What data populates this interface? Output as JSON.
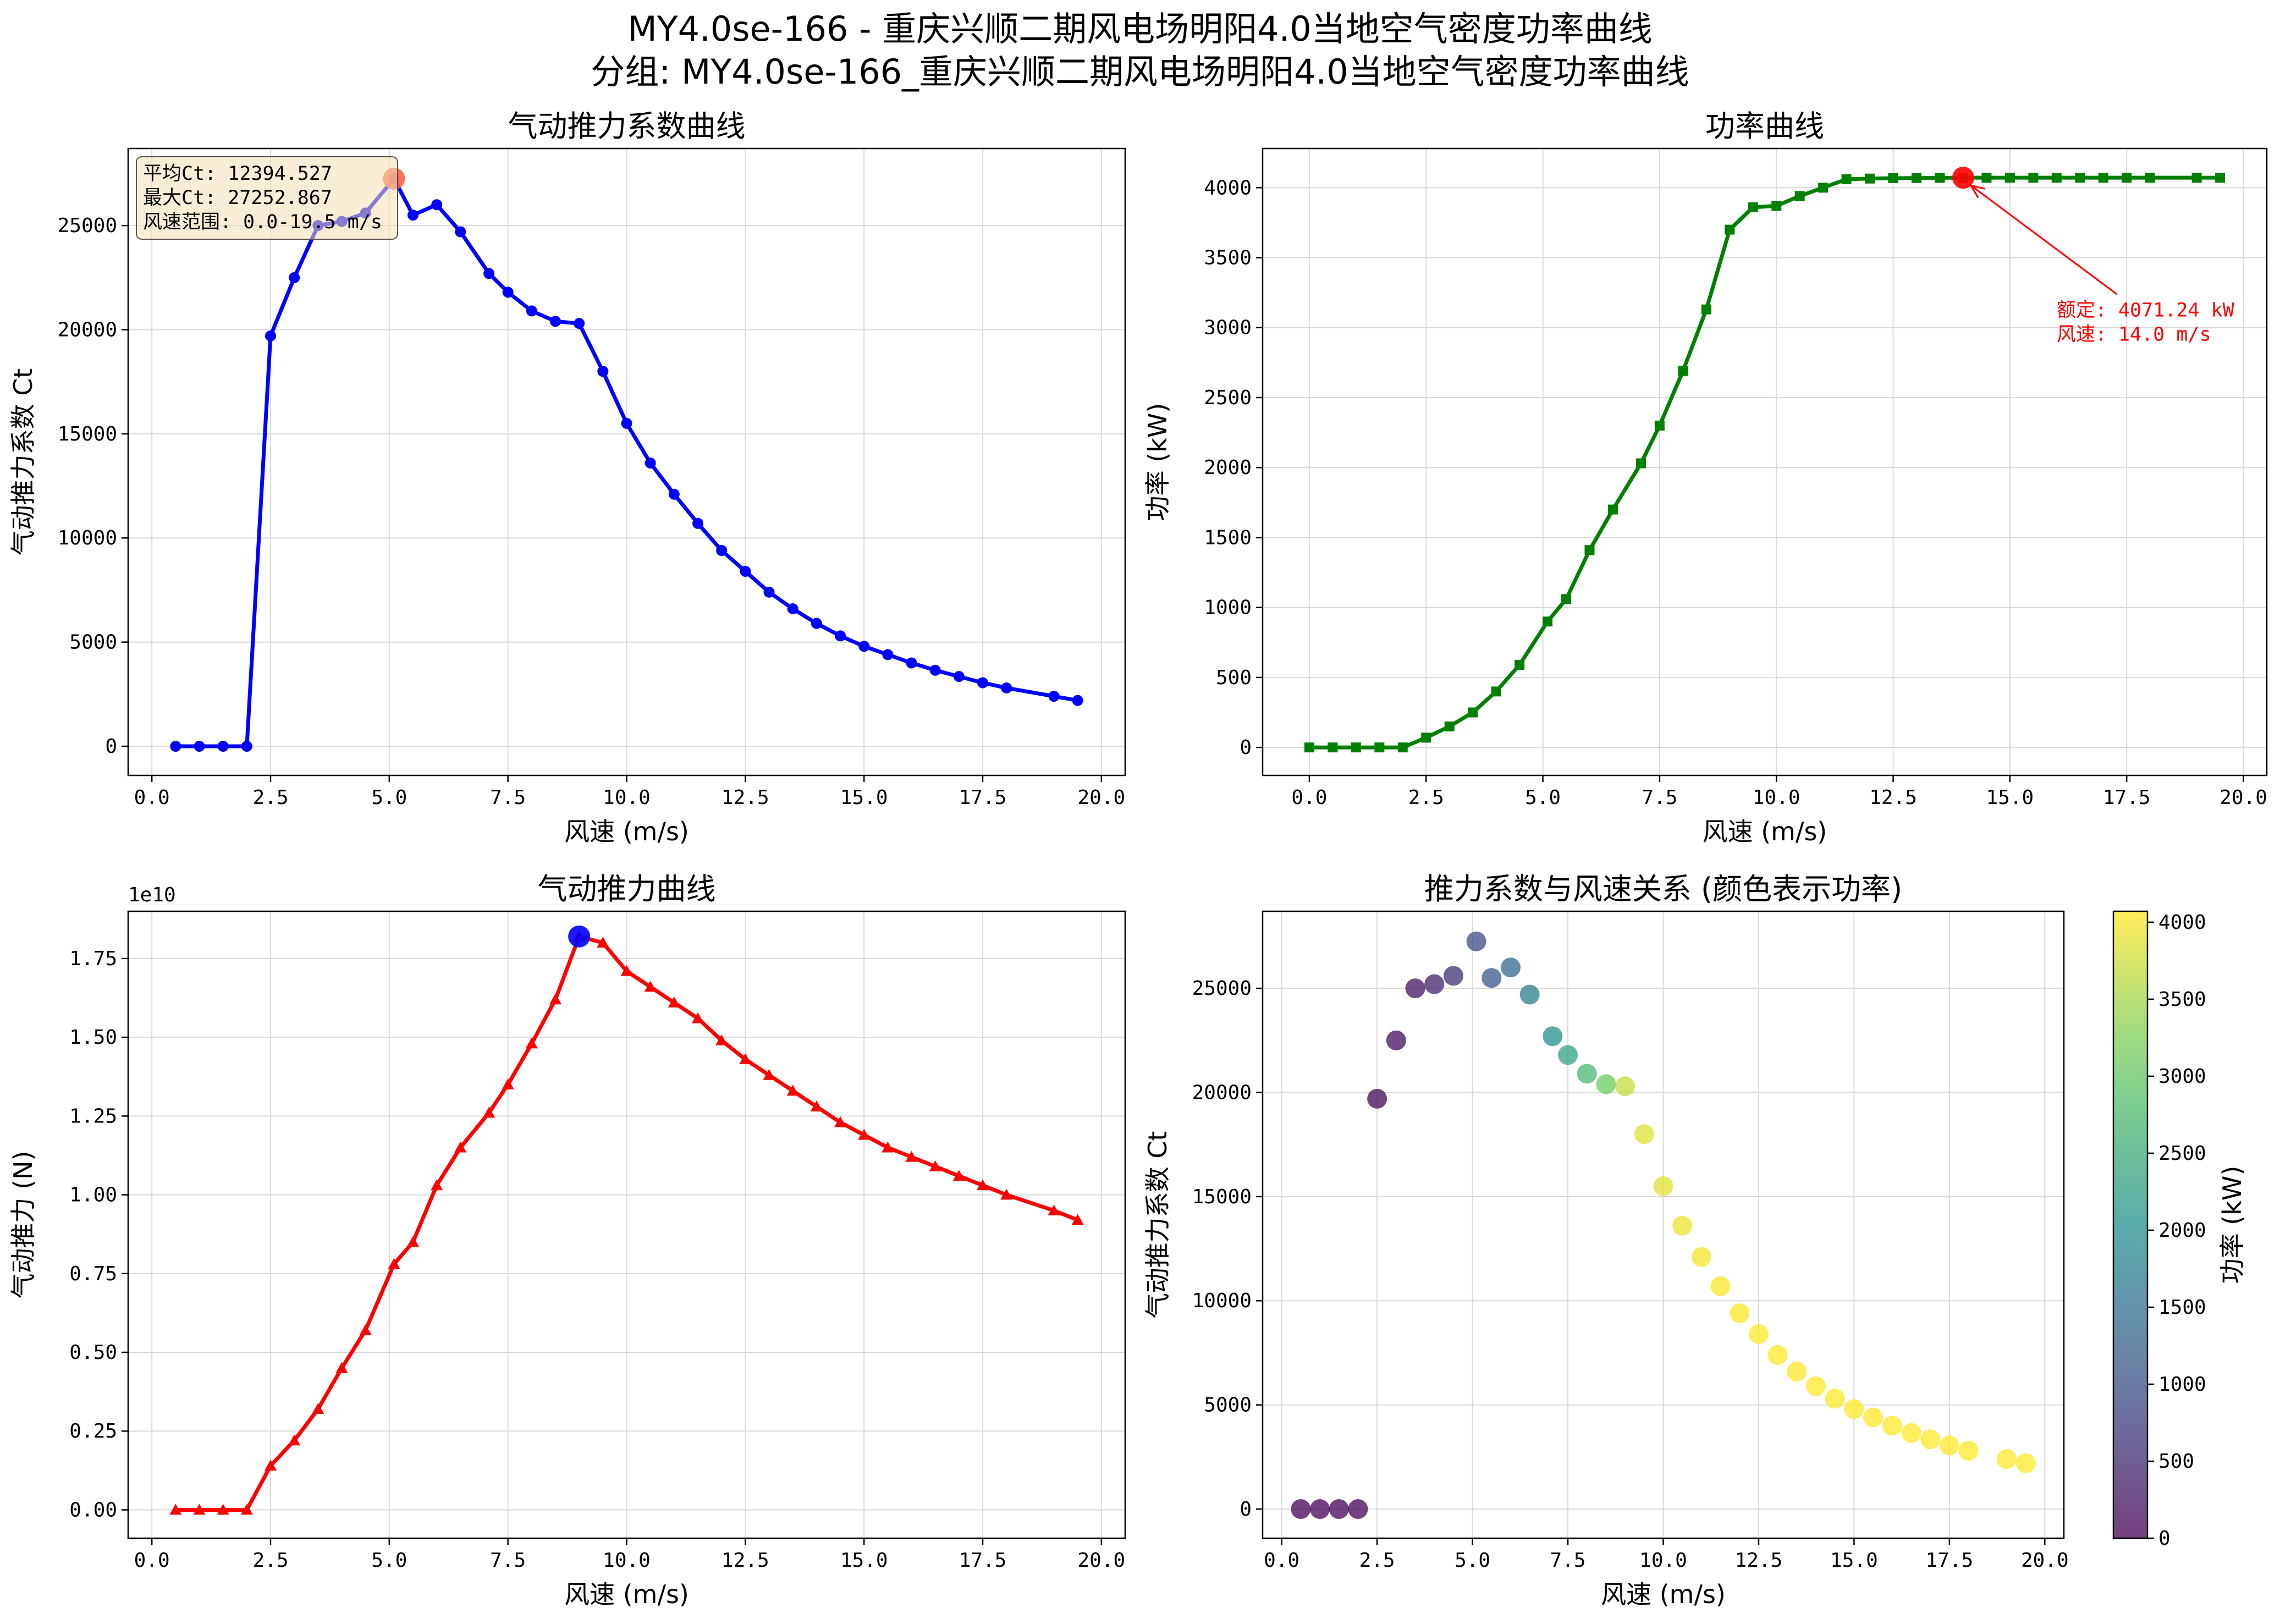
{
  "figure": {
    "title_line1": "MY4.0se-166 - 重庆兴顺二期风电场明阳4.0当地空气密度功率曲线",
    "title_line2": "分组: MY4.0se-166_重庆兴顺二期风电场明阳4.0当地空气密度功率曲线"
  },
  "chart_data": [
    {
      "id": "ct",
      "type": "line",
      "title": "气动推力系数曲线",
      "xlabel": "风速 (m/s)",
      "ylabel": "气动推力系数 Ct",
      "xlim": [
        -0.5,
        20.5
      ],
      "ylim": [
        -1400,
        28700
      ],
      "xticks": [
        0,
        2.5,
        5,
        7.5,
        10,
        12.5,
        15,
        17.5,
        20
      ],
      "xtick_labels": [
        "0.0",
        "2.5",
        "5.0",
        "7.5",
        "10.0",
        "12.5",
        "15.0",
        "17.5",
        "20.0"
      ],
      "yticks": [
        0,
        5000,
        10000,
        15000,
        20000,
        25000
      ],
      "ytick_labels": [
        "0",
        "5000",
        "10000",
        "15000",
        "20000",
        "25000"
      ],
      "grid": true,
      "color": "#0000ff",
      "marker": "circle",
      "x": [
        0.5,
        1.0,
        1.5,
        2.0,
        2.5,
        3.0,
        3.5,
        4.0,
        4.5,
        5.1,
        5.5,
        6.0,
        6.5,
        7.1,
        7.5,
        8.0,
        8.5,
        9.0,
        9.5,
        10.0,
        10.5,
        11.0,
        11.5,
        12.0,
        12.5,
        13.0,
        13.5,
        14.0,
        14.5,
        15.0,
        15.5,
        16.0,
        16.5,
        17.0,
        17.5,
        18.0,
        19.0,
        19.5
      ],
      "y": [
        0,
        0,
        0,
        0,
        19700,
        22500,
        25000,
        25200,
        25600,
        27253,
        25500,
        26000,
        24700,
        22700,
        21800,
        20900,
        20400,
        20300,
        18000,
        15500,
        13600,
        12100,
        10700,
        9400,
        8400,
        7400,
        6600,
        5900,
        5300,
        4800,
        4400,
        4000,
        3650,
        3350,
        3050,
        2800,
        2400,
        2200
      ],
      "highlight": {
        "x": 5.1,
        "y": 27253,
        "color": "#ff6347"
      },
      "stats_box": {
        "line1": "平均Ct: 12394.527",
        "line2": "最大Ct: 27252.867",
        "line3": "风速范围: 0.0-19.5 m/s"
      }
    },
    {
      "id": "power",
      "type": "line",
      "title": "功率曲线",
      "xlabel": "风速 (m/s)",
      "ylabel": "功率 (kW)",
      "xlim": [
        -1.0,
        20.5
      ],
      "ylim": [
        -200,
        4280
      ],
      "xticks": [
        0,
        2.5,
        5,
        7.5,
        10,
        12.5,
        15,
        17.5,
        20
      ],
      "xtick_labels": [
        "0.0",
        "2.5",
        "5.0",
        "7.5",
        "10.0",
        "12.5",
        "15.0",
        "17.5",
        "20.0"
      ],
      "yticks": [
        0,
        500,
        1000,
        1500,
        2000,
        2500,
        3000,
        3500,
        4000
      ],
      "ytick_labels": [
        "0",
        "500",
        "1000",
        "1500",
        "2000",
        "2500",
        "3000",
        "3500",
        "4000"
      ],
      "grid": true,
      "color": "#008000",
      "marker": "square",
      "x": [
        0,
        0.5,
        1.0,
        1.5,
        2.0,
        2.5,
        3.0,
        3.5,
        4.0,
        4.5,
        5.1,
        5.5,
        6.0,
        6.5,
        7.1,
        7.5,
        8.0,
        8.5,
        9.0,
        9.5,
        10.0,
        10.5,
        11.0,
        11.5,
        12.0,
        12.5,
        13.0,
        13.5,
        14.0,
        14.5,
        15.0,
        15.5,
        16.0,
        16.5,
        17.0,
        17.5,
        18.0,
        19.0,
        19.5
      ],
      "y": [
        0,
        0,
        0,
        0,
        0,
        70,
        150,
        250,
        400,
        590,
        900,
        1060,
        1410,
        1700,
        2030,
        2300,
        2690,
        3130,
        3700,
        3860,
        3870,
        3940,
        4000,
        4060,
        4065,
        4068,
        4069,
        4070,
        4071.24,
        4071,
        4071,
        4071,
        4071,
        4071,
        4071,
        4071,
        4071,
        4071,
        4071
      ],
      "highlight": {
        "x": 14.0,
        "y": 4071.24,
        "color": "#ff0000"
      },
      "annotation": {
        "line1": "额定: 4071.24 kW",
        "line2": "风速: 14.0 m/s",
        "text_x": 16.0,
        "text_y": 3080,
        "color": "#ff0000"
      }
    },
    {
      "id": "thrust",
      "type": "line",
      "title": "气动推力曲线",
      "xlabel": "风速 (m/s)",
      "ylabel": "气动推力 (N)",
      "offset_label": "1e10",
      "xlim": [
        -0.5,
        20.5
      ],
      "ylim": [
        -0.09,
        1.9
      ],
      "xticks": [
        0,
        2.5,
        5,
        7.5,
        10,
        12.5,
        15,
        17.5,
        20
      ],
      "xtick_labels": [
        "0.0",
        "2.5",
        "5.0",
        "7.5",
        "10.0",
        "12.5",
        "15.0",
        "17.5",
        "20.0"
      ],
      "yticks": [
        0,
        0.25,
        0.5,
        0.75,
        1.0,
        1.25,
        1.5,
        1.75
      ],
      "ytick_labels": [
        "0.00",
        "0.25",
        "0.50",
        "0.75",
        "1.00",
        "1.25",
        "1.50",
        "1.75"
      ],
      "grid": true,
      "color": "#ff0000",
      "marker": "triangle",
      "x": [
        0.5,
        1.0,
        1.5,
        2.0,
        2.5,
        3.0,
        3.5,
        4.0,
        4.5,
        5.1,
        5.5,
        6.0,
        6.5,
        7.1,
        7.5,
        8.0,
        8.5,
        9.0,
        9.5,
        10.0,
        10.5,
        11.0,
        11.5,
        12.0,
        12.5,
        13.0,
        13.5,
        14.0,
        14.5,
        15.0,
        15.5,
        16.0,
        16.5,
        17.0,
        17.5,
        18.0,
        19.0,
        19.5
      ],
      "y": [
        0,
        0,
        0,
        0,
        0.14,
        0.22,
        0.32,
        0.45,
        0.57,
        0.78,
        0.85,
        1.03,
        1.15,
        1.26,
        1.35,
        1.48,
        1.62,
        1.82,
        1.8,
        1.71,
        1.66,
        1.61,
        1.56,
        1.49,
        1.43,
        1.38,
        1.33,
        1.28,
        1.23,
        1.19,
        1.15,
        1.12,
        1.09,
        1.06,
        1.03,
        1.0,
        0.95,
        0.92
      ],
      "highlight": {
        "x": 9.0,
        "y": 1.82,
        "color": "#0000ff"
      }
    },
    {
      "id": "scatter",
      "type": "scatter",
      "title": "推力系数与风速关系 (颜色表示功率)",
      "xlabel": "风速 (m/s)",
      "ylabel": "气动推力系数 Ct",
      "xlim": [
        -0.5,
        20.5
      ],
      "ylim": [
        -1400,
        28700
      ],
      "xticks": [
        0,
        2.5,
        5,
        7.5,
        10,
        12.5,
        15,
        17.5,
        20
      ],
      "xtick_labels": [
        "0.0",
        "2.5",
        "5.0",
        "7.5",
        "10.0",
        "12.5",
        "15.0",
        "17.5",
        "20.0"
      ],
      "yticks": [
        0,
        5000,
        10000,
        15000,
        20000,
        25000
      ],
      "ytick_labels": [
        "0",
        "5000",
        "10000",
        "15000",
        "20000",
        "25000"
      ],
      "grid": true,
      "colormap": "viridis",
      "x": [
        0.5,
        1.0,
        1.5,
        2.0,
        2.5,
        3.0,
        3.5,
        4.0,
        4.5,
        5.1,
        5.5,
        6.0,
        6.5,
        7.1,
        7.5,
        8.0,
        8.5,
        9.0,
        9.5,
        10.0,
        10.5,
        11.0,
        11.5,
        12.0,
        12.5,
        13.0,
        13.5,
        14.0,
        14.5,
        15.0,
        15.5,
        16.0,
        16.5,
        17.0,
        17.5,
        18.0,
        19.0,
        19.5
      ],
      "y": [
        0,
        0,
        0,
        0,
        19700,
        22500,
        25000,
        25200,
        25600,
        27253,
        25500,
        26000,
        24700,
        22700,
        21800,
        20900,
        20400,
        20300,
        18000,
        15500,
        13600,
        12100,
        10700,
        9400,
        8400,
        7400,
        6600,
        5900,
        5300,
        4800,
        4400,
        4000,
        3650,
        3350,
        3050,
        2800,
        2400,
        2200
      ],
      "power": [
        0,
        0,
        0,
        0,
        70,
        150,
        250,
        400,
        590,
        900,
        1060,
        1410,
        1700,
        2030,
        2300,
        2690,
        3130,
        3700,
        3860,
        3870,
        3940,
        4000,
        4060,
        4065,
        4068,
        4069,
        4070,
        4071,
        4071,
        4071,
        4071,
        4071,
        4071,
        4071,
        4071,
        4071,
        4071,
        4071
      ],
      "colorbar": {
        "label": "功率 (kW)",
        "min": 0,
        "max": 4071,
        "ticks": [
          0,
          500,
          1000,
          1500,
          2000,
          2500,
          3000,
          3500,
          4000
        ],
        "tick_labels": [
          "0",
          "500",
          "1000",
          "1500",
          "2000",
          "2500",
          "3000",
          "3500",
          "4000"
        ]
      }
    }
  ]
}
